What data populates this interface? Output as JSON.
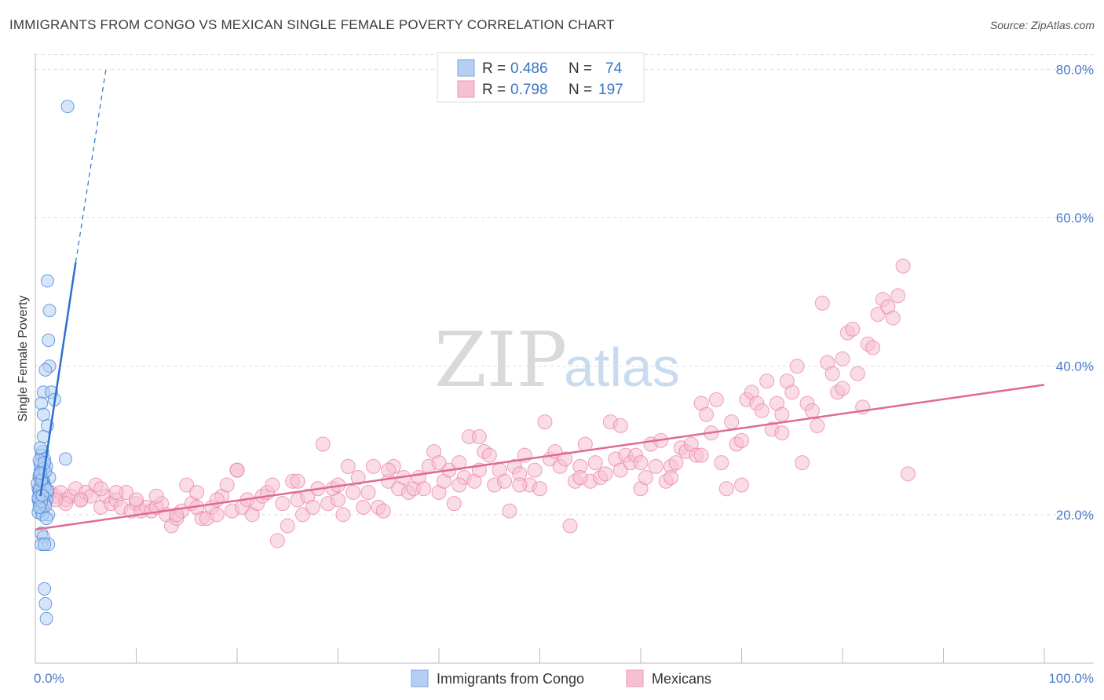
{
  "title": "IMMIGRANTS FROM CONGO VS MEXICAN SINGLE FEMALE POVERTY CORRELATION CHART",
  "source": "Source: ZipAtlas.com",
  "watermark": {
    "zip": "ZIP",
    "atlas": "atlas"
  },
  "colors": {
    "blue": "#4a86d8",
    "blue_fill": "#b5cff3",
    "pink": "#e87aa0",
    "pink_fill": "#f6bfd2",
    "grid": "#dddddd",
    "tick_text": "#4a7cc7"
  },
  "legend_top": {
    "rows": [
      {
        "r_label": "R =",
        "r_value": "0.486",
        "n_label": "N =",
        "n_value": "74",
        "series": "blue"
      },
      {
        "r_label": "R =",
        "r_value": "0.798",
        "n_label": "N =",
        "n_value": "197",
        "series": "pink"
      }
    ]
  },
  "chart_data": {
    "type": "scatter",
    "title": "IMMIGRANTS FROM CONGO VS MEXICAN SINGLE FEMALE POVERTY CORRELATION CHART",
    "xlabel": "",
    "ylabel": "Single Female Poverty",
    "xlim": [
      0,
      100
    ],
    "ylim": [
      0,
      83
    ],
    "x_tick_labels": [
      "0.0%",
      "100.0%"
    ],
    "y_ticks": [
      20,
      40,
      60,
      80
    ],
    "y_tick_labels": [
      "20.0%",
      "40.0%",
      "60.0%",
      "80.0%"
    ],
    "legend": [
      "Immigrants from Congo",
      "Mexicans"
    ],
    "series": [
      {
        "name": "Immigrants from Congo",
        "color": "#4a86d8",
        "points": [
          [
            3.2,
            75.0
          ],
          [
            1.2,
            51.5
          ],
          [
            1.4,
            47.5
          ],
          [
            1.3,
            43.5
          ],
          [
            1.4,
            40.0
          ],
          [
            1.0,
            39.5
          ],
          [
            0.8,
            36.5
          ],
          [
            1.6,
            36.5
          ],
          [
            1.9,
            35.5
          ],
          [
            0.6,
            35.0
          ],
          [
            1.2,
            32.0
          ],
          [
            0.8,
            30.5
          ],
          [
            0.7,
            28.5
          ],
          [
            0.6,
            28.0
          ],
          [
            0.9,
            27.5
          ],
          [
            3.0,
            27.5
          ],
          [
            1.1,
            26.5
          ],
          [
            0.5,
            26.0
          ],
          [
            0.7,
            25.5
          ],
          [
            0.4,
            25.0
          ],
          [
            1.4,
            25.0
          ],
          [
            0.6,
            24.5
          ],
          [
            0.8,
            24.5
          ],
          [
            0.5,
            24.0
          ],
          [
            0.9,
            24.0
          ],
          [
            0.3,
            23.5
          ],
          [
            0.6,
            23.5
          ],
          [
            1.0,
            23.5
          ],
          [
            0.4,
            23.0
          ],
          [
            0.7,
            23.0
          ],
          [
            1.2,
            23.0
          ],
          [
            0.5,
            22.5
          ],
          [
            0.8,
            22.5
          ],
          [
            0.3,
            22.0
          ],
          [
            0.6,
            22.0
          ],
          [
            1.1,
            22.0
          ],
          [
            0.4,
            21.5
          ],
          [
            0.9,
            21.5
          ],
          [
            0.5,
            21.0
          ],
          [
            0.7,
            20.8
          ],
          [
            0.6,
            20.5
          ],
          [
            0.3,
            20.3
          ],
          [
            1.3,
            20.0
          ],
          [
            0.7,
            20.0
          ],
          [
            1.1,
            19.5
          ],
          [
            0.6,
            17.5
          ],
          [
            0.8,
            17.0
          ],
          [
            0.6,
            16.0
          ],
          [
            1.3,
            16.0
          ],
          [
            0.9,
            16.0
          ],
          [
            0.9,
            10.0
          ],
          [
            1.0,
            8.0
          ],
          [
            1.1,
            6.0
          ],
          [
            0.5,
            26.8
          ],
          [
            0.4,
            27.3
          ],
          [
            0.8,
            26.2
          ],
          [
            0.4,
            25.3
          ],
          [
            0.9,
            23.8
          ],
          [
            0.5,
            22.8
          ],
          [
            1.0,
            21.2
          ],
          [
            0.2,
            24.2
          ],
          [
            0.4,
            23.3
          ],
          [
            0.6,
            21.8
          ],
          [
            0.7,
            24.8
          ],
          [
            0.3,
            22.3
          ],
          [
            1.0,
            25.8
          ],
          [
            0.5,
            29.0
          ],
          [
            0.8,
            33.5
          ],
          [
            0.6,
            24.6
          ],
          [
            0.4,
            21.0
          ],
          [
            1.2,
            23.3
          ],
          [
            0.7,
            22.6
          ],
          [
            0.9,
            27.0
          ],
          [
            0.5,
            25.6
          ]
        ],
        "trend": {
          "x0": 0.5,
          "y0": 22.5,
          "x1": 4.0,
          "y1": 54.0,
          "dash_to": [
            7.0,
            80.0
          ]
        }
      },
      {
        "name": "Mexicans",
        "color": "#e87aa0",
        "points": [
          [
            1.5,
            23.0
          ],
          [
            2.0,
            22.5
          ],
          [
            2.5,
            23.0
          ],
          [
            3.0,
            22.0
          ],
          [
            3.5,
            22.5
          ],
          [
            4.0,
            23.5
          ],
          [
            4.5,
            22.0
          ],
          [
            5.0,
            23.0
          ],
          [
            5.5,
            22.5
          ],
          [
            6.0,
            24.0
          ],
          [
            6.5,
            21.0
          ],
          [
            7.0,
            22.5
          ],
          [
            7.5,
            21.5
          ],
          [
            8.0,
            22.0
          ],
          [
            8.5,
            21.0
          ],
          [
            9.0,
            23.0
          ],
          [
            9.5,
            20.5
          ],
          [
            10.0,
            21.5
          ],
          [
            10.5,
            20.5
          ],
          [
            11.0,
            21.0
          ],
          [
            11.5,
            20.5
          ],
          [
            12.0,
            21.0
          ],
          [
            12.5,
            21.5
          ],
          [
            13.0,
            20.0
          ],
          [
            13.5,
            18.5
          ],
          [
            14.0,
            19.5
          ],
          [
            14.5,
            20.5
          ],
          [
            15.0,
            24.0
          ],
          [
            15.5,
            21.5
          ],
          [
            16.0,
            23.0
          ],
          [
            16.5,
            19.5
          ],
          [
            17.0,
            19.5
          ],
          [
            17.5,
            21.0
          ],
          [
            18.0,
            20.0
          ],
          [
            18.5,
            22.5
          ],
          [
            19.0,
            24.0
          ],
          [
            19.5,
            20.5
          ],
          [
            20.0,
            26.0
          ],
          [
            20.5,
            21.0
          ],
          [
            21.0,
            22.0
          ],
          [
            21.5,
            20.0
          ],
          [
            22.0,
            21.5
          ],
          [
            22.5,
            22.5
          ],
          [
            23.0,
            23.0
          ],
          [
            23.5,
            24.0
          ],
          [
            24.0,
            16.5
          ],
          [
            24.5,
            21.5
          ],
          [
            25.0,
            18.5
          ],
          [
            25.5,
            24.5
          ],
          [
            26.0,
            22.0
          ],
          [
            26.5,
            20.0
          ],
          [
            27.0,
            22.5
          ],
          [
            27.5,
            21.0
          ],
          [
            28.0,
            23.5
          ],
          [
            28.5,
            29.5
          ],
          [
            29.0,
            21.5
          ],
          [
            29.5,
            23.5
          ],
          [
            30.0,
            22.0
          ],
          [
            30.5,
            20.0
          ],
          [
            31.0,
            26.5
          ],
          [
            31.5,
            23.0
          ],
          [
            32.0,
            25.0
          ],
          [
            32.5,
            21.0
          ],
          [
            33.0,
            23.0
          ],
          [
            33.5,
            26.5
          ],
          [
            34.0,
            21.0
          ],
          [
            34.5,
            20.5
          ],
          [
            35.0,
            24.5
          ],
          [
            35.5,
            26.5
          ],
          [
            36.0,
            23.5
          ],
          [
            36.5,
            25.0
          ],
          [
            37.0,
            23.0
          ],
          [
            37.5,
            23.5
          ],
          [
            38.0,
            25.0
          ],
          [
            38.5,
            23.5
          ],
          [
            39.0,
            26.5
          ],
          [
            39.5,
            28.5
          ],
          [
            40.0,
            23.0
          ],
          [
            40.5,
            24.5
          ],
          [
            41.0,
            26.0
          ],
          [
            41.5,
            21.5
          ],
          [
            42.0,
            27.0
          ],
          [
            42.5,
            25.0
          ],
          [
            43.0,
            30.5
          ],
          [
            43.5,
            24.5
          ],
          [
            44.0,
            26.0
          ],
          [
            44.5,
            28.5
          ],
          [
            45.0,
            28.0
          ],
          [
            45.5,
            24.0
          ],
          [
            46.0,
            26.0
          ],
          [
            46.5,
            24.5
          ],
          [
            47.0,
            20.5
          ],
          [
            47.5,
            26.5
          ],
          [
            48.0,
            25.5
          ],
          [
            48.5,
            28.0
          ],
          [
            49.0,
            24.0
          ],
          [
            49.5,
            26.0
          ],
          [
            50.0,
            23.5
          ],
          [
            50.5,
            32.5
          ],
          [
            51.0,
            27.5
          ],
          [
            51.5,
            28.5
          ],
          [
            52.0,
            26.5
          ],
          [
            52.5,
            27.5
          ],
          [
            53.0,
            18.5
          ],
          [
            53.5,
            24.5
          ],
          [
            54.0,
            26.5
          ],
          [
            54.5,
            29.5
          ],
          [
            55.0,
            24.5
          ],
          [
            55.5,
            27.0
          ],
          [
            56.0,
            25.0
          ],
          [
            56.5,
            25.5
          ],
          [
            57.0,
            32.5
          ],
          [
            57.5,
            27.5
          ],
          [
            58.0,
            26.0
          ],
          [
            58.5,
            28.0
          ],
          [
            59.0,
            27.0
          ],
          [
            59.5,
            28.0
          ],
          [
            60.0,
            23.5
          ],
          [
            60.5,
            25.0
          ],
          [
            61.0,
            29.5
          ],
          [
            61.5,
            26.5
          ],
          [
            62.0,
            30.0
          ],
          [
            62.5,
            24.5
          ],
          [
            63.0,
            26.5
          ],
          [
            63.5,
            27.0
          ],
          [
            64.0,
            29.0
          ],
          [
            64.5,
            28.5
          ],
          [
            65.0,
            29.5
          ],
          [
            65.5,
            28.0
          ],
          [
            66.0,
            35.0
          ],
          [
            66.5,
            33.5
          ],
          [
            67.0,
            31.0
          ],
          [
            67.5,
            35.5
          ],
          [
            68.0,
            27.0
          ],
          [
            68.5,
            23.5
          ],
          [
            69.0,
            32.5
          ],
          [
            69.5,
            29.5
          ],
          [
            70.0,
            24.0
          ],
          [
            70.5,
            35.5
          ],
          [
            71.0,
            36.5
          ],
          [
            71.5,
            35.0
          ],
          [
            72.0,
            34.0
          ],
          [
            72.5,
            38.0
          ],
          [
            73.0,
            31.5
          ],
          [
            73.5,
            35.0
          ],
          [
            74.0,
            33.5
          ],
          [
            74.5,
            38.0
          ],
          [
            75.0,
            36.5
          ],
          [
            75.5,
            40.0
          ],
          [
            76.0,
            27.0
          ],
          [
            76.5,
            35.0
          ],
          [
            77.0,
            34.0
          ],
          [
            77.5,
            32.0
          ],
          [
            78.0,
            48.5
          ],
          [
            78.5,
            40.5
          ],
          [
            79.0,
            39.0
          ],
          [
            79.5,
            36.5
          ],
          [
            80.0,
            41.0
          ],
          [
            80.5,
            44.5
          ],
          [
            81.0,
            45.0
          ],
          [
            81.5,
            39.0
          ],
          [
            82.0,
            34.5
          ],
          [
            82.5,
            43.0
          ],
          [
            83.0,
            42.5
          ],
          [
            83.5,
            47.0
          ],
          [
            84.0,
            49.0
          ],
          [
            84.5,
            48.0
          ],
          [
            85.0,
            46.5
          ],
          [
            85.5,
            49.5
          ],
          [
            86.0,
            53.5
          ],
          [
            86.5,
            25.5
          ],
          [
            58.0,
            32.0
          ],
          [
            44.0,
            30.5
          ],
          [
            40.0,
            27.0
          ],
          [
            35.0,
            26.0
          ],
          [
            30.0,
            24.0
          ],
          [
            26.0,
            24.5
          ],
          [
            20.0,
            26.0
          ],
          [
            18.0,
            22.0
          ],
          [
            16.0,
            21.0
          ],
          [
            14.0,
            20.0
          ],
          [
            12.0,
            22.5
          ],
          [
            10.0,
            22.0
          ],
          [
            8.0,
            23.0
          ],
          [
            6.5,
            23.5
          ],
          [
            4.5,
            22.0
          ],
          [
            3.0,
            21.5
          ],
          [
            2.0,
            22.0
          ],
          [
            42.0,
            24.0
          ],
          [
            48.0,
            24.0
          ],
          [
            54.0,
            25.0
          ],
          [
            60.0,
            27.0
          ],
          [
            63.0,
            25.0
          ],
          [
            66.0,
            28.0
          ],
          [
            70.0,
            30.0
          ],
          [
            74.0,
            31.0
          ],
          [
            80.0,
            37.0
          ]
        ],
        "trend": {
          "x0": 0,
          "y0": 18.0,
          "x1": 100,
          "y1": 37.5
        }
      }
    ]
  }
}
